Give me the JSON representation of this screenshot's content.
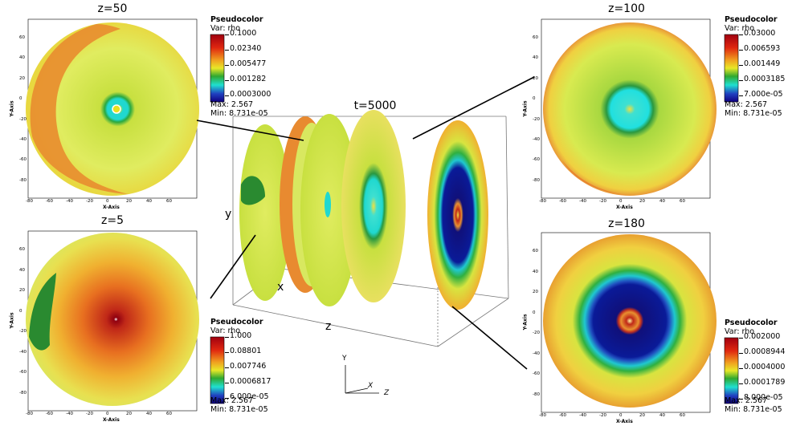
{
  "center": {
    "title": "t=5000",
    "axis_y": "y",
    "axis_x": "x",
    "axis_z": "z",
    "triad_y": "Y",
    "triad_x": "X",
    "triad_z": "Z"
  },
  "panels": {
    "z50": {
      "title": "z=50",
      "legend": {
        "head": "Pseudocolor",
        "var": "Var: rho",
        "ticks": [
          "0.1000",
          "0.02340",
          "0.005477",
          "0.001282",
          "0.0003000"
        ],
        "max": "Max:  2.567",
        "min": "Min:  8.731e-05"
      },
      "colors": {
        "bg": "#d8e830",
        "outer": "#e8a030",
        "ring": "#20d8d0"
      }
    },
    "z100": {
      "title": "z=100",
      "legend": {
        "head": "Pseudocolor",
        "var": "Var: rho",
        "ticks": [
          "0.03000",
          "0.006593",
          "0.001449",
          "0.0003185",
          "7.000e-05"
        ],
        "max": "Max:  2.567",
        "min": "Min:  8.731e-05"
      }
    },
    "z5": {
      "title": "z=5",
      "legend": {
        "head": "Pseudocolor",
        "var": "Var: rho",
        "ticks": [
          "1.000",
          "0.08801",
          "0.007746",
          "0.0006817",
          "6.000e-05"
        ],
        "max": "Max:  2.567",
        "min": "Min:  8.731e-05"
      }
    },
    "z180": {
      "title": "z=180",
      "legend": {
        "head": "Pseudocolor",
        "var": "Var: rho",
        "ticks": [
          "0.002000",
          "0.0008944",
          "0.0004000",
          "0.0001789",
          "8.000e-05"
        ],
        "max": "Max:  2.567",
        "min": "Min:  8.731e-05"
      }
    }
  },
  "axes": {
    "x_label": "X-Axis",
    "y_label": "Y-Axis",
    "x_ticks": [
      "-80",
      "-60",
      "-40",
      "-20",
      "0",
      "20",
      "40",
      "60"
    ],
    "y_ticks": [
      "60",
      "40",
      "20",
      "0",
      "-20",
      "-40",
      "-60",
      "-80"
    ]
  }
}
